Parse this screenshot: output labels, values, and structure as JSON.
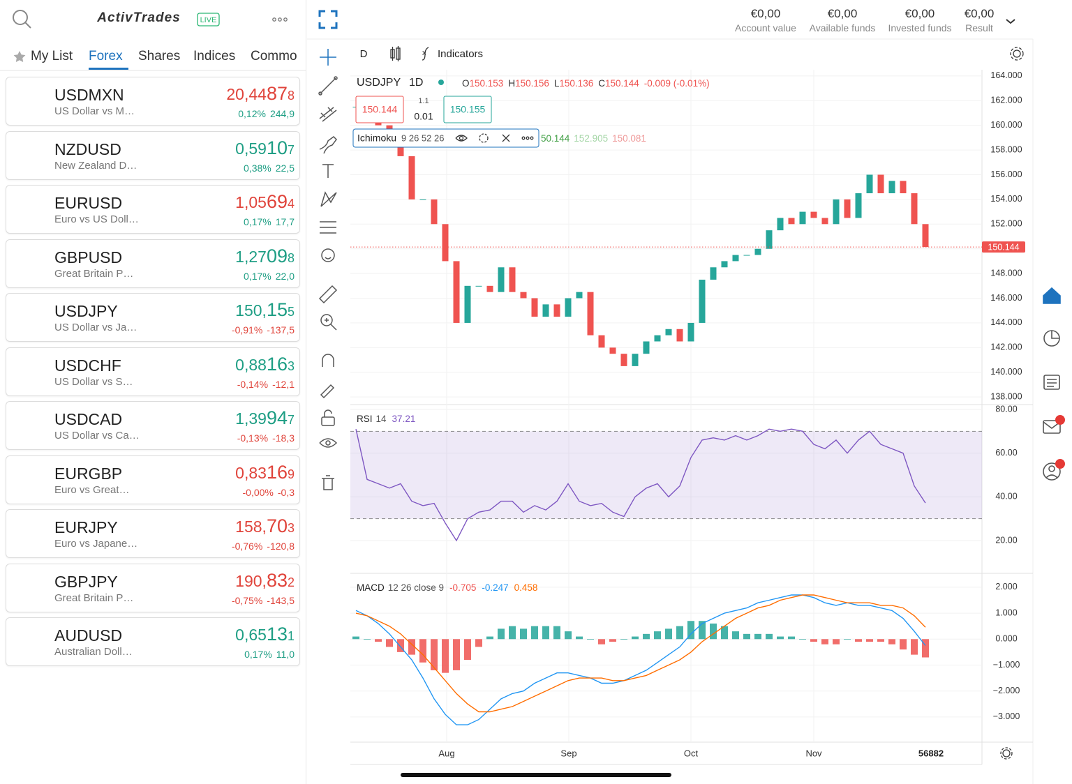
{
  "sidebar": {
    "logo": "ActivTrades",
    "badge": "LIVE",
    "tabs": [
      "My List",
      "Forex",
      "Shares",
      "Indices",
      "Commo"
    ],
    "active_tab": 1,
    "instruments": [
      {
        "symbol": "USDMXN",
        "name": "US Dollar vs M…",
        "price": "20,44878",
        "change_pct": "0,12%",
        "change_pts": "244,9",
        "price_color": "#e0443b",
        "color": "#1e9e84"
      },
      {
        "symbol": "NZDUSD",
        "name": "New Zealand D…",
        "price": "0,59107",
        "change_pct": "0,38%",
        "change_pts": "22,5",
        "price_color": "#1e9e84",
        "color": "#1e9e84"
      },
      {
        "symbol": "EURUSD",
        "name": "Euro vs US Doll…",
        "price": "1,05694",
        "change_pct": "0,17%",
        "change_pts": "17,7",
        "price_color": "#e0443b",
        "color": "#1e9e84"
      },
      {
        "symbol": "GBPUSD",
        "name": "Great Britain P…",
        "price": "1,27098",
        "change_pct": "0,17%",
        "change_pts": "22,0",
        "price_color": "#1e9e84",
        "color": "#1e9e84"
      },
      {
        "symbol": "USDJPY",
        "name": "US Dollar vs Ja…",
        "price": "150,155",
        "change_pct": "-0,91%",
        "change_pts": "-137,5",
        "price_color": "#1e9e84",
        "color": "#e0443b"
      },
      {
        "symbol": "USDCHF",
        "name": "US Dollar vs S…",
        "price": "0,88163",
        "change_pct": "-0,14%",
        "change_pts": "-12,1",
        "price_color": "#1e9e84",
        "color": "#e0443b"
      },
      {
        "symbol": "USDCAD",
        "name": "US Dollar vs Ca…",
        "price": "1,39947",
        "change_pct": "-0,13%",
        "change_pts": "-18,3",
        "price_color": "#1e9e84",
        "color": "#e0443b"
      },
      {
        "symbol": "EURGBP",
        "name": "Euro vs Great…",
        "price": "0,83169",
        "change_pct": "-0,00%",
        "change_pts": "-0,3",
        "price_color": "#e0443b",
        "color": "#e0443b"
      },
      {
        "symbol": "EURJPY",
        "name": "Euro vs Japane…",
        "price": "158,703",
        "change_pct": "-0,76%",
        "change_pts": "-120,8",
        "price_color": "#e0443b",
        "color": "#e0443b"
      },
      {
        "symbol": "GBPJPY",
        "name": "Great Britain P…",
        "price": "190,832",
        "change_pct": "-0,75%",
        "change_pts": "-143,5",
        "price_color": "#e0443b",
        "color": "#e0443b"
      },
      {
        "symbol": "AUDUSD",
        "name": "Australian Doll…",
        "price": "0,65131",
        "change_pct": "0,17%",
        "change_pts": "11,0",
        "price_color": "#1e9e84",
        "color": "#1e9e84"
      }
    ]
  },
  "account": [
    {
      "value": "€0,00",
      "label": "Account value"
    },
    {
      "value": "€0,00",
      "label": "Available funds"
    },
    {
      "value": "€0,00",
      "label": "Invested funds"
    },
    {
      "value": "€0,00",
      "label": "Result"
    }
  ],
  "chart_toolbar": {
    "interval": "D",
    "indicators": "Indicators"
  },
  "chart_data": [
    {
      "type": "candlestick",
      "title": "USDJPY",
      "interval": "1D",
      "ohlc": [
        {
          "label": "O",
          "value": 150.153
        },
        {
          "label": "H",
          "value": 150.156
        },
        {
          "label": "L",
          "value": 150.136
        },
        {
          "label": "C",
          "value": 150.144
        }
      ],
      "change": "-0.009 (-0.01%)",
      "bid": 150.144,
      "spread": 1.1,
      "lot": 0.01,
      "ask": 150.155,
      "overlay": {
        "name": "Ichimoku",
        "params": "9 26 52 26",
        "values": [
          "50.144",
          "152.905",
          "150.081"
        ],
        "colors": [
          "#43a047",
          "#a5d6a7",
          "#ef9a9a"
        ]
      },
      "values": [
        161.5,
        161.5,
        160,
        158.5,
        157.5,
        154,
        154,
        152,
        149,
        144,
        147,
        147,
        146.5,
        148.5,
        146.5,
        146,
        144.5,
        145.5,
        144.5,
        146,
        146.5,
        143,
        142,
        141.5,
        140.5,
        141.5,
        142.5,
        143,
        143.5,
        142.5,
        144,
        147.5,
        148.5,
        149,
        149.5,
        149.5,
        150,
        151.5,
        152.5,
        152,
        153,
        152.5,
        152,
        154,
        152.5,
        154.5,
        156,
        154.5,
        155.5,
        154.5,
        152,
        150.144
      ],
      "up_color": "#26a69a",
      "down_color": "#ef5350",
      "ylim": [
        137.5,
        164.5
      ],
      "yticks": [
        {
          "value": 138,
          "label": "138.000"
        },
        {
          "value": 140,
          "label": "140.000"
        },
        {
          "value": 142,
          "label": "142.000"
        },
        {
          "value": 144,
          "label": "144.000"
        },
        {
          "value": 146,
          "label": "146.000"
        },
        {
          "value": 148,
          "label": "148.000"
        },
        {
          "value": 150,
          "label": "150.000"
        },
        {
          "value": 152,
          "label": "152.000"
        },
        {
          "value": 154,
          "label": "154.000"
        },
        {
          "value": 156,
          "label": "156.000"
        },
        {
          "value": 158,
          "label": "158.000"
        },
        {
          "value": 160,
          "label": "160.000"
        },
        {
          "value": 162,
          "label": "162.000"
        },
        {
          "value": 164,
          "label": "164.000"
        }
      ],
      "x_labels": [
        "Aug",
        "Sep",
        "Oct",
        "Nov"
      ],
      "footer_label": "56882"
    },
    {
      "type": "line",
      "title": "RSI",
      "params": "14",
      "color": "#7e57c2",
      "bands": [
        30,
        70
      ],
      "values": [
        71,
        48,
        46,
        44,
        46,
        38,
        36,
        37,
        28,
        20,
        30,
        33,
        34,
        38,
        38,
        33,
        36,
        34,
        38,
        46,
        38,
        36,
        37,
        33,
        31,
        40,
        44,
        46,
        40,
        45,
        58,
        66,
        67,
        66,
        68,
        66,
        68,
        71,
        70,
        71,
        70,
        64,
        62,
        66,
        60,
        66,
        70,
        64,
        62,
        60,
        45,
        37.21
      ],
      "ylim": [
        5,
        81.6
      ],
      "yticks": [
        {
          "value": 20,
          "label": "20.00"
        },
        {
          "value": 40,
          "label": "40.00"
        },
        {
          "value": 60,
          "label": "60.00"
        },
        {
          "value": 80,
          "label": "80.00"
        }
      ]
    },
    {
      "type": "macd",
      "title": "MACD",
      "params": "12 26 close 9",
      "up_color": "#26a69a",
      "down_color": "#ef5350",
      "series": [
        {
          "color": "#ef5350",
          "values": [
            0.1,
            0,
            -0.1,
            -0.3,
            -0.5,
            -0.6,
            -0.9,
            -1.2,
            -1.3,
            -1.2,
            -0.8,
            -0.3,
            0.1,
            0.4,
            0.5,
            0.4,
            0.5,
            0.5,
            0.5,
            0.3,
            0.1,
            0,
            -0.2,
            -0.1,
            0,
            0.1,
            0.2,
            0.3,
            0.4,
            0.5,
            0.7,
            0.7,
            0.6,
            0.5,
            0.3,
            0.2,
            0.2,
            0.2,
            0.1,
            0.1,
            0,
            -0.1,
            -0.2,
            -0.2,
            0,
            -0.1,
            -0.1,
            -0.1,
            -0.2,
            -0.4,
            -0.6,
            -0.705
          ]
        },
        {
          "color": "#2196f3",
          "values": [
            1.1,
            0.9,
            0.6,
            0.2,
            -0.3,
            -0.8,
            -1.5,
            -2.3,
            -2.9,
            -3.3,
            -3.3,
            -3.1,
            -2.7,
            -2.3,
            -2.1,
            -2.0,
            -1.7,
            -1.5,
            -1.3,
            -1.3,
            -1.4,
            -1.5,
            -1.7,
            -1.7,
            -1.6,
            -1.4,
            -1.2,
            -0.9,
            -0.6,
            -0.3,
            0.2,
            0.6,
            0.8,
            1.0,
            1.1,
            1.2,
            1.4,
            1.5,
            1.6,
            1.7,
            1.7,
            1.6,
            1.4,
            1.3,
            1.4,
            1.3,
            1.3,
            1.2,
            1.1,
            0.8,
            0.3,
            -0.247
          ]
        },
        {
          "color": "#ff6d00",
          "values": [
            1.0,
            0.9,
            0.7,
            0.5,
            0.2,
            -0.2,
            -0.6,
            -1.1,
            -1.6,
            -2.1,
            -2.5,
            -2.8,
            -2.8,
            -2.7,
            -2.6,
            -2.4,
            -2.2,
            -2.0,
            -1.8,
            -1.6,
            -1.5,
            -1.5,
            -1.5,
            -1.6,
            -1.6,
            -1.5,
            -1.4,
            -1.2,
            -1.0,
            -0.8,
            -0.5,
            -0.1,
            0.2,
            0.5,
            0.8,
            1.0,
            1.2,
            1.3,
            1.5,
            1.6,
            1.7,
            1.7,
            1.6,
            1.5,
            1.4,
            1.4,
            1.4,
            1.3,
            1.3,
            1.2,
            0.9,
            0.458
          ]
        }
      ],
      "ylim": [
        -3.97,
        2.48
      ],
      "yticks": [
        {
          "value": 2,
          "label": "2.000"
        },
        {
          "value": 1,
          "label": "1.000"
        },
        {
          "value": 0,
          "label": "0.000"
        },
        {
          "value": -1,
          "label": "−1.000"
        },
        {
          "value": -2,
          "label": "−2.000"
        },
        {
          "value": -3,
          "label": "−3.000"
        }
      ]
    }
  ]
}
